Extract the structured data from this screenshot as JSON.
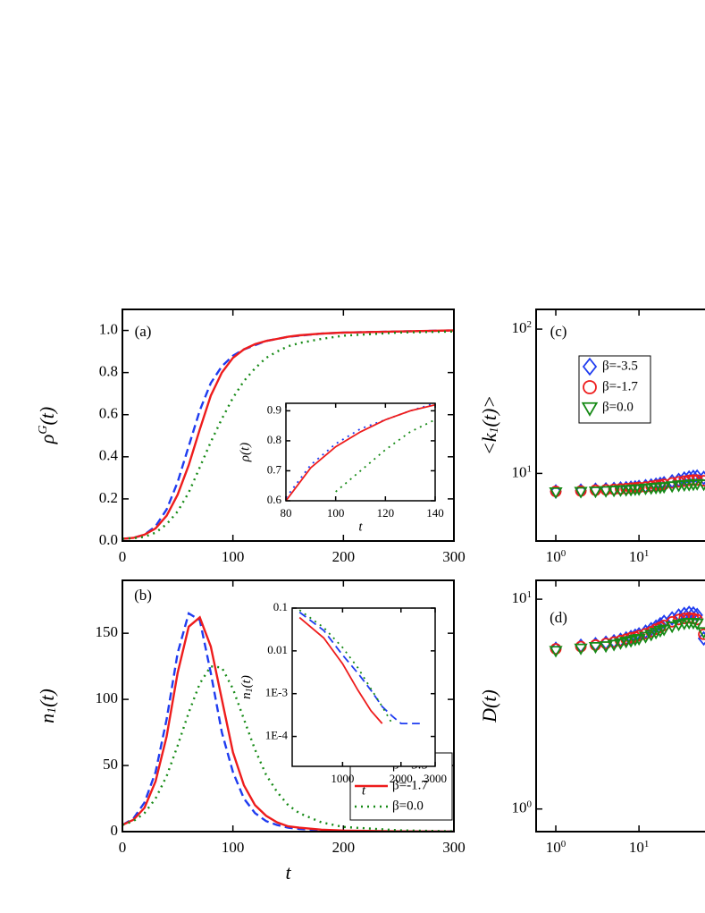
{
  "chart_data": [
    {
      "type": "line",
      "panel_label": "(a)",
      "y_label": {
        "text": [
          "ρ",
          "G",
          "(t)"
        ],
        "script": "sup"
      },
      "x": [
        0,
        10,
        20,
        30,
        40,
        50,
        60,
        70,
        80,
        90,
        100,
        110,
        120,
        130,
        140,
        150,
        160,
        180,
        200,
        250,
        300
      ],
      "series": [
        {
          "name": "β=-3.5",
          "color": "#1f3cf0",
          "dash": "dashed",
          "values": [
            0.01,
            0.015,
            0.03,
            0.07,
            0.15,
            0.28,
            0.45,
            0.62,
            0.75,
            0.83,
            0.88,
            0.91,
            0.93,
            0.95,
            0.96,
            0.97,
            0.975,
            0.985,
            0.99,
            0.995,
            1.0
          ]
        },
        {
          "name": "β=-1.7",
          "color": "#ee1c1c",
          "dash": "solid",
          "values": [
            0.01,
            0.015,
            0.03,
            0.06,
            0.12,
            0.22,
            0.36,
            0.53,
            0.69,
            0.8,
            0.87,
            0.91,
            0.935,
            0.95,
            0.96,
            0.97,
            0.977,
            0.985,
            0.99,
            0.995,
            1.0
          ]
        },
        {
          "name": "β=0.0",
          "color": "#168a16",
          "dash": "dotted",
          "values": [
            0.01,
            0.013,
            0.02,
            0.04,
            0.08,
            0.14,
            0.23,
            0.35,
            0.47,
            0.58,
            0.68,
            0.76,
            0.82,
            0.87,
            0.9,
            0.925,
            0.94,
            0.96,
            0.975,
            0.99,
            0.995
          ]
        }
      ],
      "xlim": [
        0,
        300
      ],
      "ylim": [
        0,
        1.1
      ],
      "xticks": [
        0,
        100,
        200,
        300
      ],
      "yticks": [
        {
          "value": 0,
          "label": "0.0"
        },
        0.2,
        0.4,
        0.6,
        0.8,
        {
          "value": 1,
          "label": "1.0"
        }
      ]
    },
    {
      "type": "line",
      "y_label": "ρ(t)",
      "x_label": "t",
      "x": [
        80,
        90,
        100,
        110,
        120,
        130,
        140
      ],
      "series": [
        {
          "name": "β=-3.5",
          "color": "#1f3cf0",
          "dash": "dotted",
          "values": [
            0.61,
            0.72,
            0.79,
            0.84,
            0.87,
            0.9,
            0.925
          ]
        },
        {
          "name": "β=-1.7",
          "color": "#ee1c1c",
          "dash": "solid",
          "values": [
            0.6,
            0.71,
            0.78,
            0.83,
            0.87,
            0.9,
            0.92
          ]
        },
        {
          "name": "β=0.0",
          "color": "#168a16",
          "dash": "dotted",
          "values": [
            null,
            null,
            0.63,
            0.7,
            0.77,
            0.83,
            0.87
          ]
        }
      ],
      "xlim": [
        80,
        140
      ],
      "ylim": [
        0.6,
        0.925
      ],
      "xticks": [
        80,
        100,
        120,
        140
      ],
      "yticks": [
        0.6,
        0.7,
        0.8,
        0.9
      ]
    },
    {
      "type": "line",
      "panel_label": "(b)",
      "y_label": {
        "text": [
          "n",
          "1",
          "(t)"
        ],
        "script": "sub"
      },
      "x_label": "t",
      "x": [
        0,
        10,
        20,
        30,
        40,
        50,
        60,
        70,
        80,
        90,
        100,
        110,
        120,
        130,
        140,
        150,
        160,
        180,
        200,
        250,
        300
      ],
      "series": [
        {
          "name": "β=-3.5",
          "color": "#1f3cf0",
          "dash": "dashed",
          "values": [
            5,
            10,
            22,
            45,
            85,
            135,
            165,
            160,
            120,
            75,
            45,
            25,
            14,
            8,
            5,
            3,
            2,
            1,
            0.5,
            0,
            0
          ]
        },
        {
          "name": "β=-1.7",
          "color": "#ee1c1c",
          "dash": "solid",
          "values": [
            5,
            9,
            18,
            38,
            72,
            120,
            155,
            162,
            140,
            100,
            60,
            35,
            20,
            12,
            7,
            4,
            3,
            1.5,
            0.8,
            0.2,
            0
          ]
        },
        {
          "name": "β=0.0",
          "color": "#168a16",
          "dash": "dotted",
          "values": [
            5,
            8,
            14,
            25,
            42,
            65,
            90,
            112,
            125,
            124,
            108,
            85,
            62,
            43,
            30,
            20,
            14,
            7,
            3.5,
            1,
            0.3
          ]
        }
      ],
      "xlim": [
        0,
        300
      ],
      "ylim": [
        0,
        190
      ],
      "xticks": [
        0,
        100,
        200,
        300
      ],
      "yticks": [
        0,
        50,
        100,
        150
      ],
      "legend": "lower right"
    },
    {
      "type": "line",
      "y_label": {
        "text": [
          "n",
          "1",
          "(t)"
        ],
        "script": "sub"
      },
      "x_label": "t",
      "xscale": "log",
      "yscale": "log",
      "x": [
        600,
        800,
        1000,
        1200,
        1400,
        1600,
        1800,
        2000,
        2500
      ],
      "series": [
        {
          "name": "β=-3.5",
          "color": "#1f3cf0",
          "dash": "dashed",
          "values": [
            0.08,
            0.03,
            0.008,
            0.003,
            0.0012,
            0.0005,
            0.0003,
            0.0002,
            0.0002
          ]
        },
        {
          "name": "β=-1.7",
          "color": "#ee1c1c",
          "dash": "solid",
          "values": [
            0.06,
            0.02,
            0.005,
            0.0012,
            0.0004,
            0.0002,
            null,
            null,
            null
          ]
        },
        {
          "name": "β=0.0",
          "color": "#168a16",
          "dash": "dotted",
          "values": [
            0.09,
            0.035,
            0.012,
            0.004,
            0.0013,
            0.0005,
            0.0002,
            null,
            null
          ]
        }
      ],
      "xlim": [
        550,
        3000
      ],
      "ylim": [
        2e-05,
        0.1
      ],
      "xticks": [
        1000,
        2000,
        3000
      ],
      "yticks": [
        0.1,
        0.01,
        {
          "value": 0.001,
          "label": "1E-3"
        },
        {
          "value": 0.0001,
          "label": "1E-4"
        }
      ]
    },
    {
      "type": "scatter",
      "panel_label": "(c)",
      "y_label": {
        "text": [
          "<k",
          "1",
          "(t)>"
        ],
        "script": "sub"
      },
      "xscale": "log",
      "yscale": "log",
      "x": [
        1,
        2,
        3,
        4,
        5,
        6,
        7,
        8,
        9,
        10,
        12,
        14,
        16,
        18,
        20,
        25,
        30,
        35,
        40,
        45,
        50,
        60
      ],
      "series": [
        {
          "name": "β=-3.5",
          "color": "#1f3cf0",
          "marker": "diamond",
          "values": [
            7.5,
            7.6,
            7.7,
            7.75,
            7.8,
            7.85,
            7.9,
            7.95,
            8,
            8.05,
            8.15,
            8.25,
            8.35,
            8.45,
            8.55,
            8.8,
            9.0,
            9.2,
            9.35,
            9.45,
            9.5,
            9.3
          ]
        },
        {
          "name": "β=-1.7",
          "color": "#ee1c1c",
          "marker": "circle",
          "values": [
            7.5,
            7.55,
            7.65,
            7.7,
            7.75,
            7.8,
            7.85,
            7.9,
            7.95,
            8,
            8.05,
            8.15,
            8.25,
            8.3,
            8.4,
            8.6,
            8.75,
            8.85,
            8.95,
            9.0,
            9.0,
            8.9
          ]
        },
        {
          "name": "β=0.0",
          "color": "#168a16",
          "marker": "triangle-down",
          "values": [
            7.45,
            7.5,
            7.55,
            7.6,
            7.65,
            7.7,
            7.72,
            7.75,
            7.8,
            7.82,
            7.9,
            7.95,
            8.0,
            8.05,
            8.1,
            8.2,
            8.3,
            8.35,
            8.4,
            8.45,
            8.5,
            8.45
          ]
        }
      ],
      "xlim": [
        0.58,
        590
      ],
      "ylim": [
        3.4,
        137
      ],
      "xticks": [
        {
          "value": 1,
          "label": [
            "10",
            "0"
          ]
        },
        {
          "value": 10,
          "label": [
            "10",
            "1"
          ]
        }
      ],
      "yticks": [
        {
          "value": 10,
          "label": [
            "10",
            "1"
          ]
        },
        {
          "value": 100,
          "label": [
            "10",
            "2"
          ]
        }
      ],
      "legend": "upper left"
    },
    {
      "type": "scatter",
      "panel_label": "(d)",
      "y_label": "D(t)",
      "xscale": "log",
      "yscale": "log",
      "x": [
        1,
        2,
        3,
        4,
        5,
        6,
        7,
        8,
        9,
        10,
        12,
        14,
        16,
        18,
        20,
        25,
        30,
        35,
        40,
        45,
        50,
        60
      ],
      "series": [
        {
          "name": "β=-3.5",
          "color": "#1f3cf0",
          "marker": "diamond",
          "values": [
            5.8,
            6.0,
            6.1,
            6.2,
            6.3,
            6.4,
            6.5,
            6.6,
            6.7,
            6.8,
            7.0,
            7.2,
            7.4,
            7.6,
            7.8,
            8.1,
            8.35,
            8.5,
            8.6,
            8.55,
            8.4,
            6.5
          ]
        },
        {
          "name": "β=-1.7",
          "color": "#ee1c1c",
          "marker": "circle",
          "values": [
            5.8,
            5.95,
            6.05,
            6.15,
            6.25,
            6.35,
            6.45,
            6.55,
            6.6,
            6.7,
            6.85,
            7.0,
            7.2,
            7.35,
            7.5,
            7.8,
            8.0,
            8.1,
            8.15,
            8.1,
            8.0,
            6.8
          ]
        },
        {
          "name": "β=0.0",
          "color": "#168a16",
          "marker": "triangle-down",
          "values": [
            5.7,
            5.85,
            5.95,
            6.0,
            6.1,
            6.2,
            6.3,
            6.35,
            6.45,
            6.5,
            6.65,
            6.8,
            6.95,
            7.1,
            7.2,
            7.45,
            7.6,
            7.7,
            7.75,
            7.75,
            7.7,
            7.0
          ]
        }
      ],
      "xlim": [
        0.58,
        590
      ],
      "ylim": [
        0.78,
        12.3
      ],
      "xticks": [
        {
          "value": 1,
          "label": [
            "10",
            "0"
          ]
        },
        {
          "value": 10,
          "label": [
            "10",
            "1"
          ]
        }
      ],
      "yticks": [
        {
          "value": 1,
          "label": [
            "10",
            "0"
          ]
        },
        {
          "value": 10,
          "label": [
            "10",
            "1"
          ]
        }
      ]
    }
  ]
}
